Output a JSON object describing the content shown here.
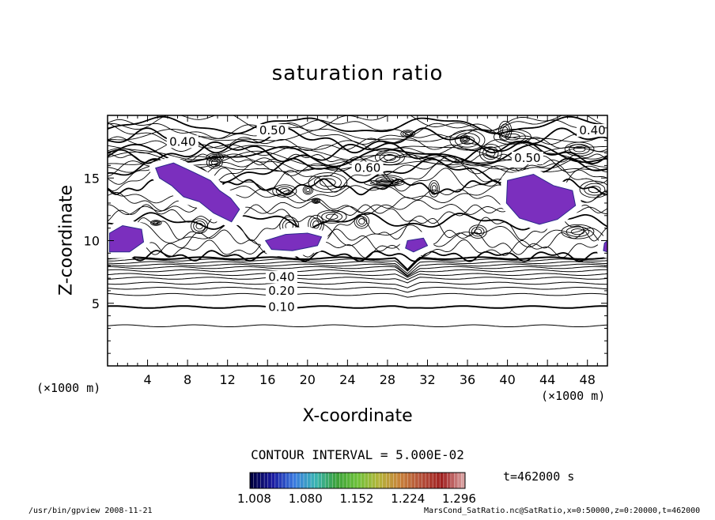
{
  "chart_data": {
    "type": "contour",
    "title": "saturation ratio",
    "xlabel": "X-coordinate",
    "ylabel": "Z-coordinate",
    "x_units": "(×1000 m)",
    "y_units": "(×1000 m)",
    "xlim": [
      0,
      50
    ],
    "ylim": [
      0,
      20
    ],
    "x_ticks": [
      4,
      8,
      12,
      16,
      20,
      24,
      28,
      32,
      36,
      40,
      44,
      48
    ],
    "y_ticks": [
      5,
      10,
      15
    ],
    "contour_interval_text": "CONTOUR INTERVAL = 5.000E-02",
    "time_text": "t=462000 s",
    "colorbar": {
      "tick_labels": [
        "1.008",
        "1.080",
        "1.152",
        "1.224",
        "1.296"
      ],
      "min": 1.008,
      "max": 1.296,
      "colors": [
        "#000040",
        "#1a1aa0",
        "#3a7ae0",
        "#3ab4b4",
        "#3aa03a",
        "#6ec23a",
        "#b4b43a",
        "#c8823a",
        "#b4503a",
        "#a02020",
        "#d8a0a0"
      ]
    },
    "contour_labels": [
      {
        "text": "0.10",
        "x": 17.4,
        "z": 4.7
      },
      {
        "text": "0.20",
        "x": 17.4,
        "z": 6.0
      },
      {
        "text": "0.40",
        "x": 17.4,
        "z": 7.1
      },
      {
        "text": "0.40",
        "x": 7.5,
        "z": 17.9
      },
      {
        "text": "0.50",
        "x": 16.5,
        "z": 18.8
      },
      {
        "text": "0.40",
        "x": 48.5,
        "z": 18.8
      },
      {
        "text": "0.50",
        "x": 42.0,
        "z": 16.6
      },
      {
        "text": "0.60",
        "x": 26.0,
        "z": 15.8
      }
    ],
    "supersaturated_regions_color": "#7b2fbe",
    "supersaturated_regions": [
      {
        "name": "region-a",
        "points": [
          [
            4.8,
            15.8
          ],
          [
            6.6,
            16.2
          ],
          [
            8.5,
            15.5
          ],
          [
            10.3,
            14.8
          ],
          [
            11.2,
            14.0
          ],
          [
            12.3,
            13.4
          ],
          [
            13.2,
            12.5
          ],
          [
            12.4,
            11.5
          ],
          [
            10.6,
            12.2
          ],
          [
            9.2,
            13.1
          ],
          [
            7.6,
            13.5
          ],
          [
            6.4,
            14.4
          ],
          [
            5.2,
            15.0
          ]
        ]
      },
      {
        "name": "region-b",
        "points": [
          [
            0.2,
            10.6
          ],
          [
            1.5,
            11.2
          ],
          [
            3.4,
            10.9
          ],
          [
            3.6,
            9.9
          ],
          [
            2.2,
            9.1
          ],
          [
            0.2,
            9.1
          ]
        ]
      },
      {
        "name": "region-c",
        "points": [
          [
            15.8,
            10.0
          ],
          [
            17.8,
            10.5
          ],
          [
            20.0,
            10.6
          ],
          [
            21.4,
            10.3
          ],
          [
            21.0,
            9.6
          ],
          [
            18.5,
            9.2
          ],
          [
            16.4,
            9.3
          ]
        ]
      },
      {
        "name": "region-d",
        "points": [
          [
            30.0,
            10.0
          ],
          [
            31.6,
            10.2
          ],
          [
            32.0,
            9.6
          ],
          [
            30.6,
            9.1
          ],
          [
            29.8,
            9.4
          ]
        ]
      },
      {
        "name": "region-e",
        "points": [
          [
            40.0,
            14.8
          ],
          [
            42.6,
            15.3
          ],
          [
            44.6,
            14.4
          ],
          [
            46.5,
            14.0
          ],
          [
            46.8,
            12.8
          ],
          [
            45.0,
            11.7
          ],
          [
            43.2,
            11.3
          ],
          [
            41.2,
            11.8
          ],
          [
            39.9,
            13.0
          ]
        ]
      },
      {
        "name": "region-f",
        "points": [
          [
            49.7,
            9.8
          ],
          [
            50,
            10.0
          ],
          [
            50,
            9.1
          ],
          [
            49.6,
            9.2
          ]
        ]
      }
    ]
  },
  "footer": {
    "left": "/usr/bin/gpview  2008-11-21",
    "right": "MarsCond_SatRatio.nc@SatRatio,x=0:50000,z=0:20000,t=462000"
  }
}
